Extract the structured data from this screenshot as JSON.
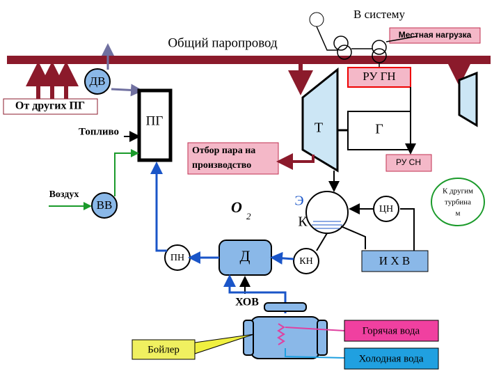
{
  "labels": {
    "to_system": "В систему",
    "steam_header": "Общий паропровод",
    "local_load": "Местная нагрузка",
    "ru_gn": "РУ ГН",
    "dv": "ДВ",
    "from_other_pg": "От других ПГ",
    "fuel": "Топливо",
    "pg": "ПГ",
    "turbine": "Т",
    "generator": "Г",
    "extraction": [
      "Отбор пара на",
      "производство"
    ],
    "ru_sn": "РУ СН",
    "air": "Воздух",
    "vv": "ВВ",
    "oxygen": "О",
    "oxygen_sub": "2",
    "e": "Э",
    "condenser": "К",
    "cn": "ЦН",
    "other_turbines": [
      "К другим",
      "турбина",
      "м"
    ],
    "pn": "ПН",
    "deaerator": "Д",
    "kn": "КН",
    "ikhv": "И Х В",
    "khov": "ХОВ",
    "hot_water": "Горячая вода",
    "boiler": "Бойлер",
    "cold_water": "Холодная вода"
  }
}
